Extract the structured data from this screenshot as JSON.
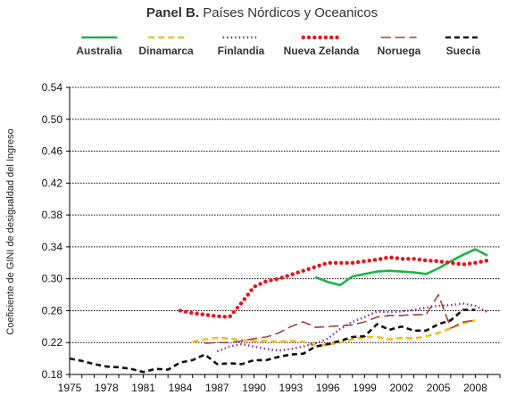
{
  "chart_data": {
    "type": "line",
    "title_bold": "Panel B.",
    "title_rest": " Países Nórdicos y Oceanicos",
    "ylabel": "Coeficiente de GINI de desigualdad del Ingreso",
    "xlabel": "",
    "ylim": [
      0.18,
      0.54
    ],
    "xlim": [
      1975,
      2010
    ],
    "yticks": [
      "0.18",
      "0.22",
      "0.26",
      "0.30",
      "0.34",
      "0.38",
      "0.42",
      "0.46",
      "0.50",
      "0.54"
    ],
    "xticks": [
      "1975",
      "1978",
      "1981",
      "1984",
      "1987",
      "1990",
      "1993",
      "1996",
      "1999",
      "2002",
      "2005",
      "2008"
    ],
    "grid": "horizontal",
    "legend_position": "top",
    "series": [
      {
        "name": "Australia",
        "color": "#1db34a",
        "style": "solid",
        "x": [
          1995,
          1996,
          1997,
          1998,
          1999,
          2000,
          2001,
          2002,
          2003,
          2004,
          2005,
          2006,
          2007,
          2008,
          2009
        ],
        "y": [
          0.302,
          0.296,
          0.292,
          0.303,
          0.306,
          0.309,
          0.31,
          0.309,
          0.308,
          0.306,
          0.313,
          0.322,
          0.33,
          0.337,
          0.329
        ]
      },
      {
        "name": "Dinamarca",
        "color": "#f5bd1f",
        "style": "dashed",
        "x": [
          1985,
          1986,
          1987,
          1988,
          1989,
          1990,
          1991,
          1992,
          1993,
          1994,
          1995,
          1996,
          1997,
          1998,
          1999,
          2000,
          2001,
          2002,
          2003,
          2004,
          2005,
          2006,
          2007,
          2008
        ],
        "y": [
          0.221,
          0.224,
          0.226,
          0.225,
          0.223,
          0.222,
          0.222,
          0.221,
          0.222,
          0.221,
          0.216,
          0.217,
          0.22,
          0.224,
          0.227,
          0.227,
          0.224,
          0.226,
          0.225,
          0.228,
          0.232,
          0.238,
          0.244,
          0.248
        ]
      },
      {
        "name": "Finlandia",
        "color": "#7a35a0",
        "style": "dotted",
        "x": [
          1987,
          1988,
          1989,
          1990,
          1991,
          1992,
          1993,
          1994,
          1995,
          1996,
          1997,
          1998,
          1999,
          2000,
          2001,
          2002,
          2003,
          2004,
          2005,
          2006,
          2007,
          2008,
          2009
        ],
        "y": [
          0.209,
          0.215,
          0.218,
          0.215,
          0.212,
          0.21,
          0.212,
          0.215,
          0.219,
          0.225,
          0.237,
          0.246,
          0.252,
          0.259,
          0.258,
          0.259,
          0.261,
          0.264,
          0.266,
          0.267,
          0.269,
          0.266,
          0.258
        ]
      },
      {
        "name": "Nueva Zelanda",
        "color": "#e8141c",
        "style": "dotted-heavy",
        "x": [
          1984,
          1985,
          1986,
          1987,
          1988,
          1989,
          1990,
          1991,
          1992,
          1993,
          1994,
          1995,
          1996,
          1997,
          1998,
          1999,
          2000,
          2001,
          2002,
          2003,
          2004,
          2005,
          2006,
          2007,
          2008,
          2009
        ],
        "y": [
          0.26,
          0.257,
          0.255,
          0.253,
          0.252,
          0.27,
          0.29,
          0.297,
          0.3,
          0.305,
          0.31,
          0.315,
          0.32,
          0.32,
          0.32,
          0.322,
          0.324,
          0.327,
          0.325,
          0.325,
          0.323,
          0.322,
          0.32,
          0.318,
          0.32,
          0.323
        ]
      },
      {
        "name": "Noruega",
        "color": "#a5423a",
        "style": "long-dash",
        "x": [
          1986,
          1987,
          1988,
          1989,
          1990,
          1991,
          1992,
          1993,
          1994,
          1995,
          1996,
          1997,
          1998,
          1999,
          2000,
          2001,
          2002,
          2003,
          2004,
          2005,
          2006,
          2007,
          2008
        ],
        "y": [
          0.219,
          0.22,
          0.22,
          0.222,
          0.225,
          0.227,
          0.232,
          0.24,
          0.246,
          0.239,
          0.24,
          0.241,
          0.242,
          0.246,
          0.252,
          0.254,
          0.254,
          0.255,
          0.255,
          0.28,
          0.238,
          0.246,
          0.248
        ]
      },
      {
        "name": "Suecia",
        "color": "#111111",
        "style": "dashed-black",
        "x": [
          1975,
          1976,
          1977,
          1978,
          1979,
          1980,
          1981,
          1982,
          1983,
          1984,
          1985,
          1986,
          1987,
          1988,
          1989,
          1990,
          1991,
          1992,
          1993,
          1994,
          1995,
          1996,
          1997,
          1998,
          1999,
          2000,
          2001,
          2002,
          2003,
          2004,
          2005,
          2006,
          2007,
          2008
        ],
        "y": [
          0.2,
          0.197,
          0.193,
          0.19,
          0.189,
          0.187,
          0.183,
          0.187,
          0.186,
          0.195,
          0.198,
          0.205,
          0.193,
          0.194,
          0.193,
          0.198,
          0.198,
          0.202,
          0.205,
          0.206,
          0.215,
          0.218,
          0.222,
          0.227,
          0.228,
          0.243,
          0.236,
          0.24,
          0.235,
          0.235,
          0.243,
          0.248,
          0.261,
          0.261
        ]
      }
    ]
  }
}
